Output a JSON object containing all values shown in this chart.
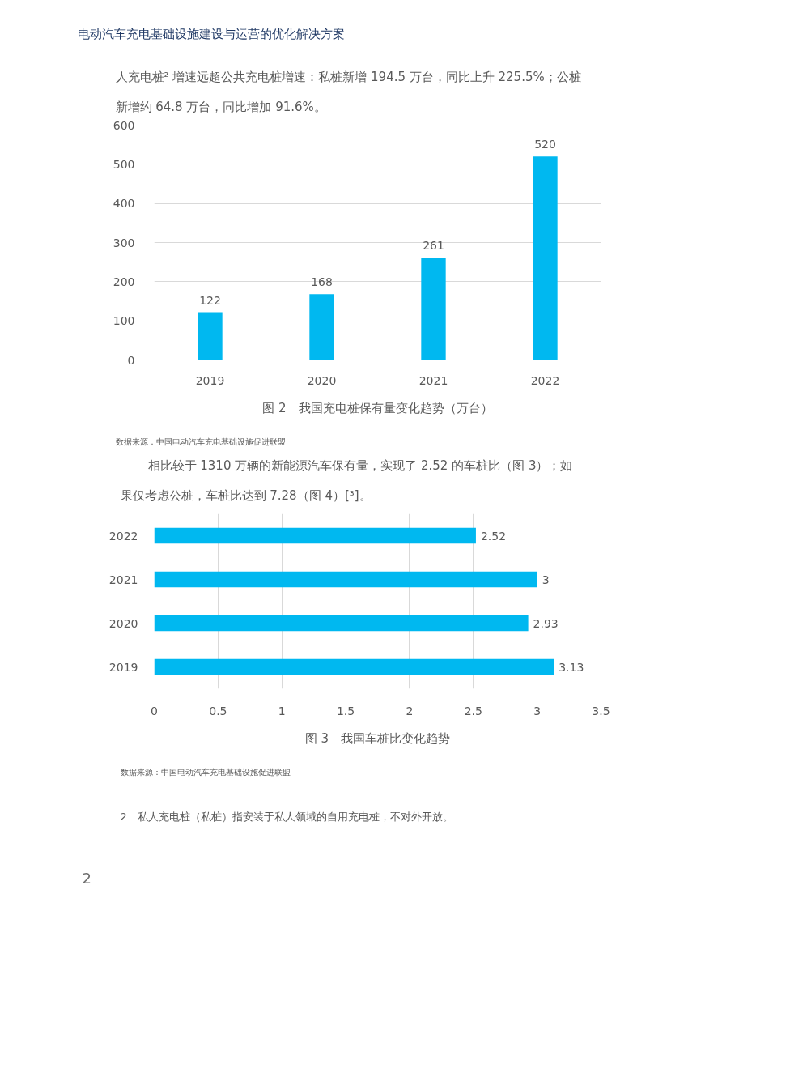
{
  "chart_data": [
    {
      "type": "bar",
      "title": "图 2　我国充电桩保有量变化趋势（万台）",
      "categories": [
        "2019",
        "2020",
        "2021",
        "2022"
      ],
      "values": [
        122,
        168,
        261,
        520
      ],
      "color": "#00b8f0",
      "ylim": [
        0,
        600
      ],
      "yticks": [
        0,
        100,
        200,
        300,
        400,
        500,
        600
      ],
      "grid": "y",
      "data_labels": true,
      "annotations": [
        "电动汽车充电基础设施建设与运营的优化解决方案",
        "人充电桩² 增速远超公共充电桩增速：私桩新增 194.5 万台，同比上升 225.5%；公桩",
        "新增约 64.8 万台，同比增加 91.6%。",
        "数据来源：中国电动汽车充电基础设施促进联盟"
      ]
    },
    {
      "type": "bar",
      "orientation": "horizontal",
      "title": "图 3　我国车桩比变化趋势",
      "categories": [
        "2022",
        "2021",
        "2020",
        "2019"
      ],
      "values": [
        2.52,
        3,
        2.93,
        3.13
      ],
      "color": "#00b8f0",
      "xlim": [
        0,
        3.5
      ],
      "xticks": [
        0,
        0.5,
        1,
        1.5,
        2,
        2.5,
        3,
        3.5
      ],
      "grid": "x",
      "data_labels": true,
      "annotations": [
        "相比较于 1310 万辆的新能源汽车保有量，实现了 2.52 的车桩比（图 3）；如",
        "果仅考虑公桩，车桩比达到 7.28（图 4）[³]。",
        "数据来源：中国电动汽车充电基础设施促进联盟",
        "2　私人充电桩（私桩）指安装于私人领域的自用充电桩，不对外开放。",
        "2"
      ]
    }
  ]
}
